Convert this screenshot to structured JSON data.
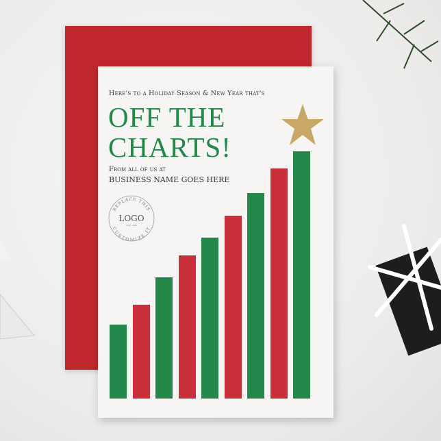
{
  "card": {
    "greeting": "Here's to a Holiday Season & New Year that's",
    "title_line1": "OFF THE",
    "title_line2": "CHARTS!",
    "from_line": "From all of us at",
    "business_name": "BUSINESS NAME GOES HERE",
    "logo": {
      "top_text": "REPLACE THIS",
      "main": "LOGO",
      "est": "EST. 1990",
      "bottom_text": "CUSTOMIZE IT"
    }
  },
  "colors": {
    "green": "#23894a",
    "red": "#c9303a",
    "envelope": "#c0272d",
    "gold": "#c8a864"
  },
  "chart_data": {
    "type": "bar",
    "values_relative": [
      30,
      38,
      49,
      58,
      65,
      74,
      83,
      93,
      100
    ],
    "bar_colors": [
      "green",
      "red",
      "green",
      "red",
      "green",
      "red",
      "green",
      "red",
      "green"
    ]
  }
}
